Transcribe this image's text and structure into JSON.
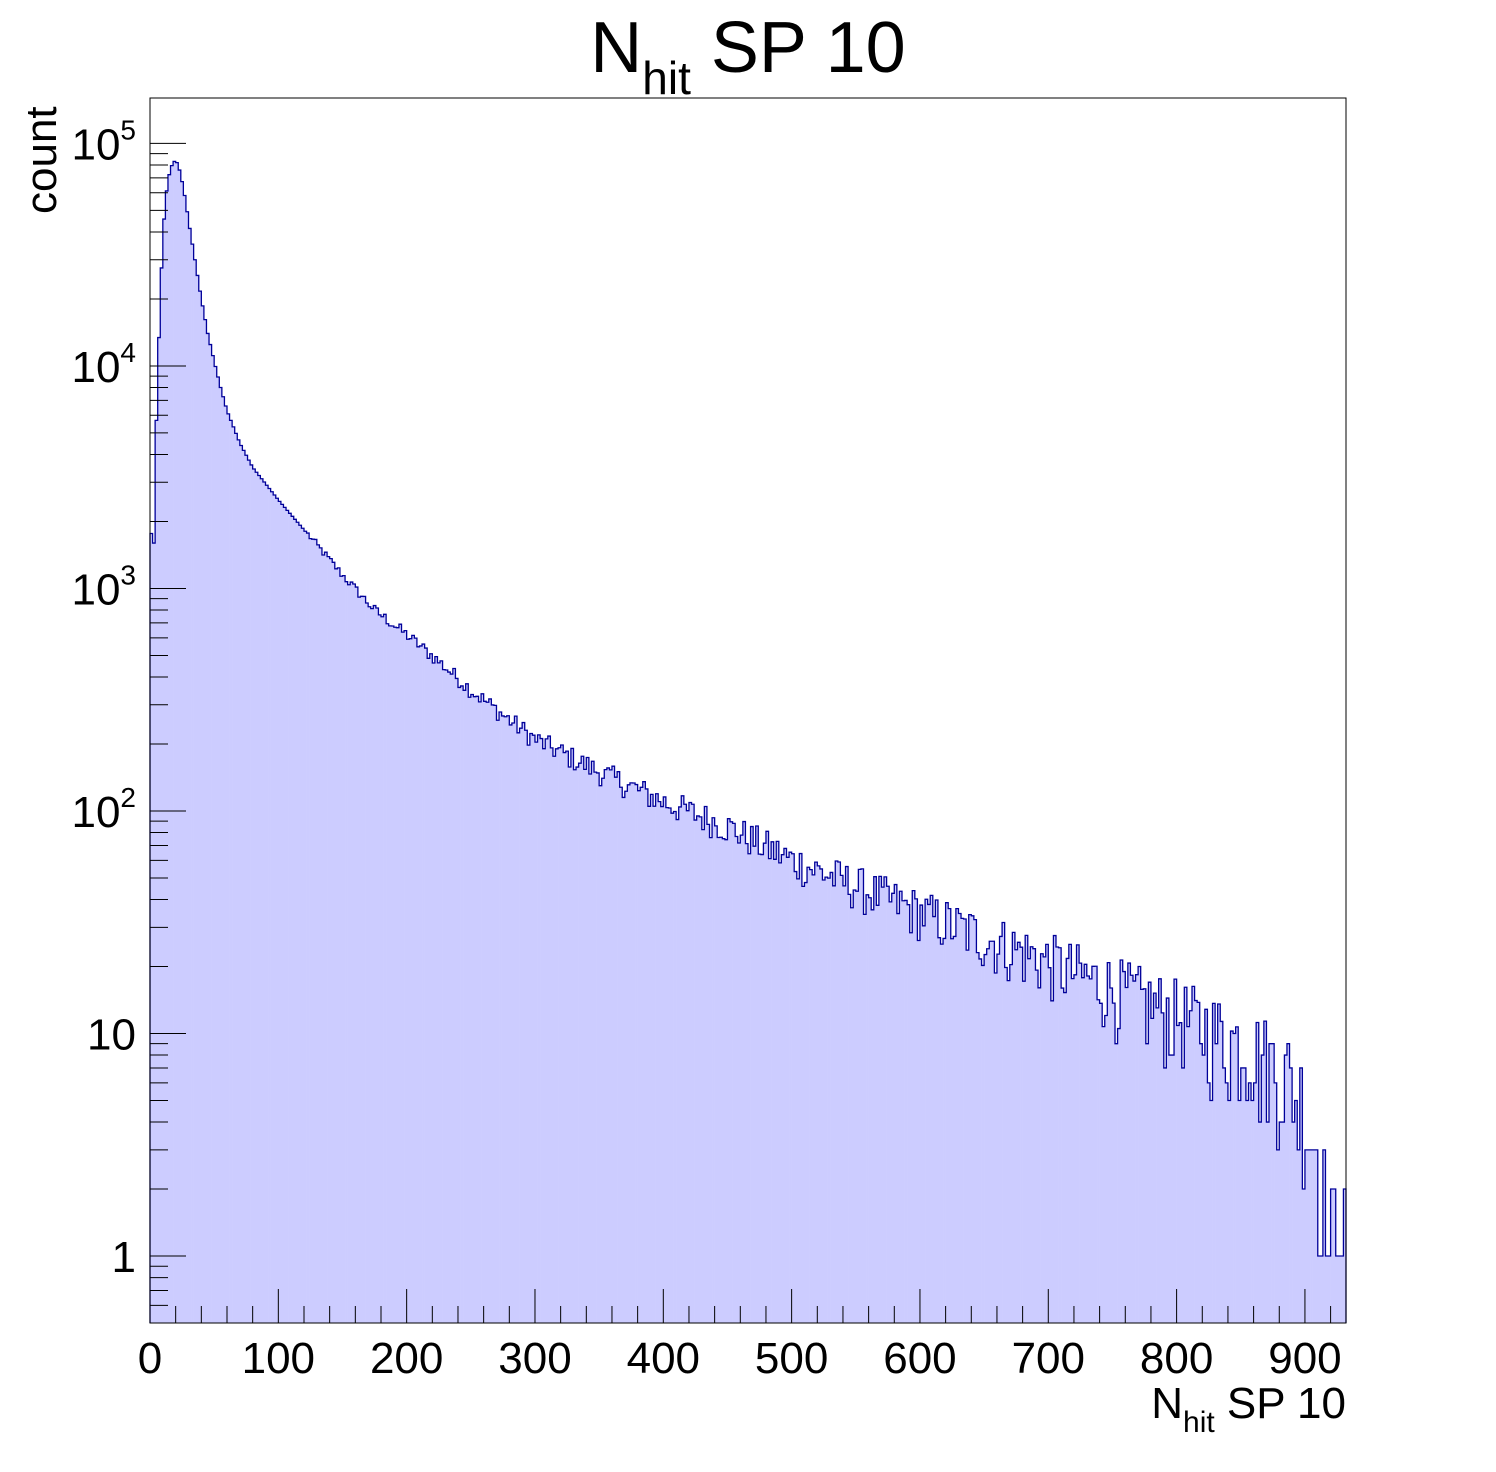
{
  "chart_data": {
    "type": "histogram",
    "title": {
      "main": "N",
      "sub": "hit",
      "rest": " SP 10"
    },
    "xlabel": {
      "main": "N",
      "sub": "hit",
      "rest": " SP 10"
    },
    "ylabel": "count",
    "xlim": [
      0,
      932
    ],
    "ylim": [
      0.5,
      160000
    ],
    "yscale": "log",
    "grid": false,
    "fill_color": "#ccccff",
    "line_color": "#000099",
    "x_ticks": [
      {
        "value": 0,
        "label": "0"
      },
      {
        "value": 100,
        "label": "100"
      },
      {
        "value": 200,
        "label": "200"
      },
      {
        "value": 300,
        "label": "300"
      },
      {
        "value": 400,
        "label": "400"
      },
      {
        "value": 500,
        "label": "500"
      },
      {
        "value": 600,
        "label": "600"
      },
      {
        "value": 700,
        "label": "700"
      },
      {
        "value": 800,
        "label": "800"
      },
      {
        "value": 900,
        "label": "900"
      }
    ],
    "y_ticks": [
      {
        "value": 1,
        "base": "1",
        "exp": ""
      },
      {
        "value": 10,
        "base": "10",
        "exp": ""
      },
      {
        "value": 100,
        "base": "10",
        "exp": "2"
      },
      {
        "value": 1000,
        "base": "10",
        "exp": "3"
      },
      {
        "value": 10000,
        "base": "10",
        "exp": "4"
      },
      {
        "value": 100000,
        "base": "10",
        "exp": "5"
      }
    ],
    "bin_width": 2,
    "anchor_points": [
      [
        0,
        2400
      ],
      [
        2,
        1300
      ],
      [
        3,
        1600
      ],
      [
        4,
        3600
      ],
      [
        6,
        9000
      ],
      [
        8,
        20000
      ],
      [
        10,
        38000
      ],
      [
        12,
        55000
      ],
      [
        14,
        68000
      ],
      [
        16,
        77000
      ],
      [
        18,
        82000
      ],
      [
        20,
        84000
      ],
      [
        22,
        80000
      ],
      [
        24,
        72000
      ],
      [
        26,
        63000
      ],
      [
        28,
        54000
      ],
      [
        30,
        45000
      ],
      [
        35,
        30000
      ],
      [
        40,
        20000
      ],
      [
        45,
        14000
      ],
      [
        50,
        10500
      ],
      [
        55,
        8000
      ],
      [
        60,
        6300
      ],
      [
        70,
        4500
      ],
      [
        80,
        3500
      ],
      [
        100,
        2500
      ],
      [
        125,
        1700
      ],
      [
        150,
        1150
      ],
      [
        175,
        800
      ],
      [
        200,
        620
      ],
      [
        225,
        470
      ],
      [
        250,
        350
      ],
      [
        275,
        270
      ],
      [
        300,
        210
      ],
      [
        350,
        150
      ],
      [
        400,
        110
      ],
      [
        450,
        85
      ],
      [
        500,
        60
      ],
      [
        550,
        46
      ],
      [
        600,
        35
      ],
      [
        650,
        27
      ],
      [
        700,
        21
      ],
      [
        750,
        16
      ],
      [
        800,
        12
      ],
      [
        850,
        9
      ],
      [
        880,
        7
      ],
      [
        900,
        5
      ],
      [
        910,
        3
      ],
      [
        918,
        1.5
      ],
      [
        924,
        1
      ],
      [
        930,
        1
      ]
    ]
  }
}
